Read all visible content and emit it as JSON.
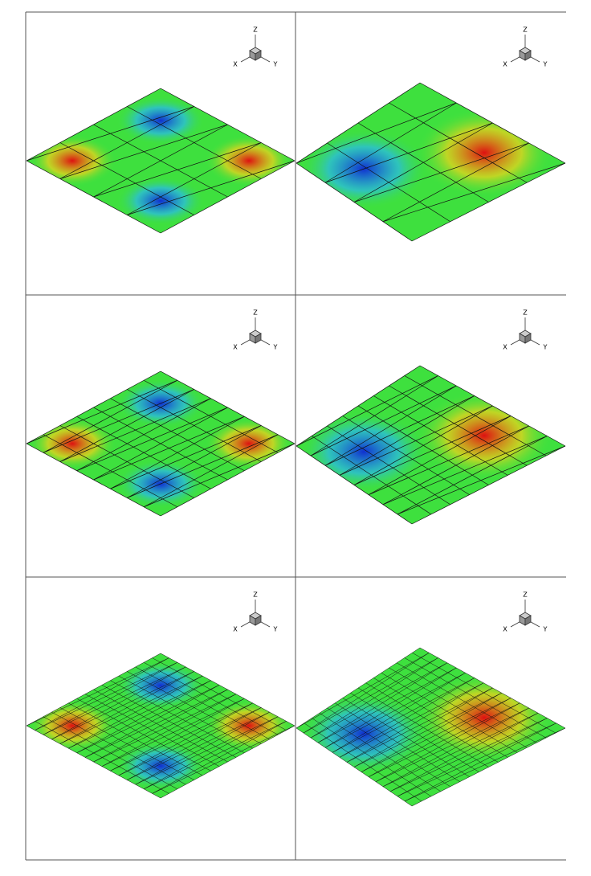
{
  "panels": [
    {
      "axes": {
        "z": "Z",
        "x": "X",
        "y": "Y"
      }
    },
    {
      "axes": {
        "z": "Z",
        "x": "X",
        "y": "Y"
      }
    },
    {
      "axes": {
        "z": "Z",
        "x": "X",
        "y": "Y"
      }
    },
    {
      "axes": {
        "z": "Z",
        "x": "X",
        "y": "Y"
      }
    },
    {
      "axes": {
        "z": "Z",
        "x": "X",
        "y": "Y"
      }
    },
    {
      "axes": {
        "z": "Z",
        "x": "X",
        "y": "Y"
      }
    }
  ]
}
